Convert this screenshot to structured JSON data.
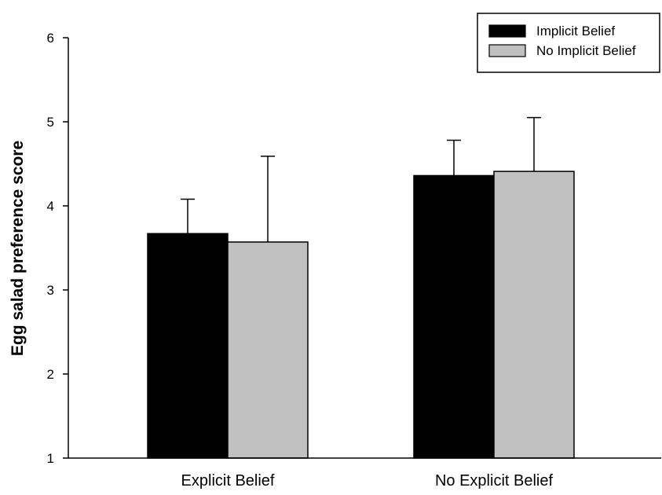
{
  "chart_data": {
    "type": "bar",
    "categories": [
      "Explicit Belief",
      "No Explicit Belief"
    ],
    "series": [
      {
        "name": "Implicit Belief",
        "color": "#000000",
        "values": [
          3.67,
          4.36
        ],
        "error": [
          0.41,
          0.42
        ]
      },
      {
        "name": "No Implicit Belief",
        "color": "#c0c0c0",
        "values": [
          3.57,
          4.41
        ],
        "error": [
          1.02,
          0.64
        ]
      }
    ],
    "ylabel": "Egg salad preference score",
    "xlabel": "",
    "ylim": [
      1,
      6
    ],
    "yticks": [
      "1",
      "2",
      "3",
      "4",
      "5",
      "6"
    ],
    "grid": false,
    "legend_position": "top-right"
  }
}
